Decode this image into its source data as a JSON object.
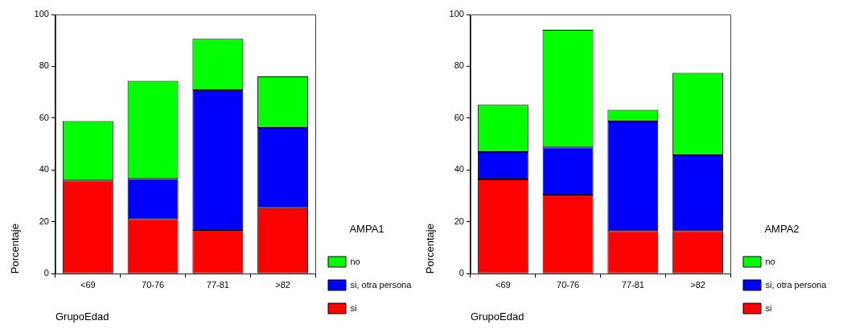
{
  "chart_data": [
    {
      "type": "bar",
      "stacked": true,
      "xlabel": "GrupoEdad",
      "ylabel": "Porcentaje",
      "legend_title": "AMPA1",
      "legend": "right",
      "categories": [
        "<69",
        "70-76",
        "77-81",
        ">82"
      ],
      "ylim": [
        0,
        100
      ],
      "yticks": [
        0,
        20,
        40,
        60,
        80,
        100
      ],
      "series": [
        {
          "name": "si",
          "color": "#ff0000",
          "values": [
            36.0,
            21.1,
            16.8,
            25.3
          ]
        },
        {
          "name": "si, otra persona",
          "color": "#0000ff",
          "values": [
            null,
            15.5,
            54.0,
            30.9
          ]
        },
        {
          "name": "no",
          "color": "#00ff00",
          "values": [
            22.9,
            37.8,
            19.8,
            19.9
          ]
        }
      ]
    },
    {
      "type": "bar",
      "stacked": true,
      "xlabel": "GrupoEdad",
      "ylabel": "Porcentaje",
      "legend_title": "AMPA2",
      "legend": "right",
      "categories": [
        "<69",
        "70-76",
        "77-81",
        ">82"
      ],
      "ylim": [
        0,
        100
      ],
      "yticks": [
        0,
        20,
        40,
        60,
        80,
        100
      ],
      "series": [
        {
          "name": "si",
          "color": "#ff0000",
          "values": [
            36.4,
            30.5,
            16.4,
            16.4
          ]
        },
        {
          "name": "si, otra persona",
          "color": "#0000ff",
          "values": [
            10.5,
            18.2,
            42.3,
            29.3
          ]
        },
        {
          "name": "no",
          "color": "#00ff00",
          "values": [
            18.3,
            45.4,
            4.5,
            31.8
          ]
        }
      ]
    }
  ]
}
